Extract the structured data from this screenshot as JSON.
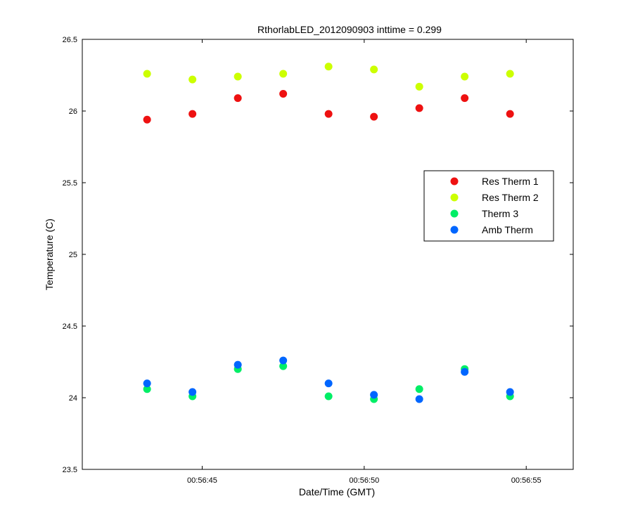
{
  "chart_data": {
    "type": "scatter",
    "title": "RthorlabLED_2012090903 inttime = 0.299",
    "xlabel": "Date/Time (GMT)",
    "ylabel": "Temperature (C)",
    "xlim": [
      41.3,
      56.45
    ],
    "ylim": [
      23.5,
      26.5
    ],
    "x_tick_values": [
      45,
      50,
      55
    ],
    "x_tick_labels": [
      "00:56:45",
      "00:56:50",
      "00:56:55"
    ],
    "y_tick_values": [
      23.5,
      24,
      24.5,
      25,
      25.5,
      26,
      26.5
    ],
    "y_tick_labels": [
      "23.5",
      "24",
      "24.5",
      "25",
      "25.5",
      "26",
      "26.5"
    ],
    "grid": false,
    "legend_position": "right",
    "x": [
      43.3,
      44.7,
      46.1,
      47.5,
      48.9,
      50.3,
      51.7,
      53.1,
      54.5
    ],
    "series": [
      {
        "name": "Res Therm 1",
        "color": "#ee1111",
        "values": [
          25.94,
          25.98,
          26.09,
          26.12,
          25.98,
          25.96,
          26.02,
          26.09,
          25.98
        ]
      },
      {
        "name": "Res Therm 2",
        "color": "#ccff00",
        "values": [
          26.26,
          26.22,
          26.24,
          26.26,
          26.31,
          26.29,
          26.17,
          26.24,
          26.26
        ]
      },
      {
        "name": "Therm 3",
        "color": "#00ee66",
        "values": [
          24.06,
          24.01,
          24.2,
          24.22,
          24.01,
          23.99,
          24.06,
          24.2,
          24.01
        ]
      },
      {
        "name": "Amb Therm",
        "color": "#0066ff",
        "values": [
          24.1,
          24.04,
          24.23,
          24.26,
          24.1,
          24.02,
          23.99,
          24.18,
          24.04
        ]
      }
    ]
  }
}
